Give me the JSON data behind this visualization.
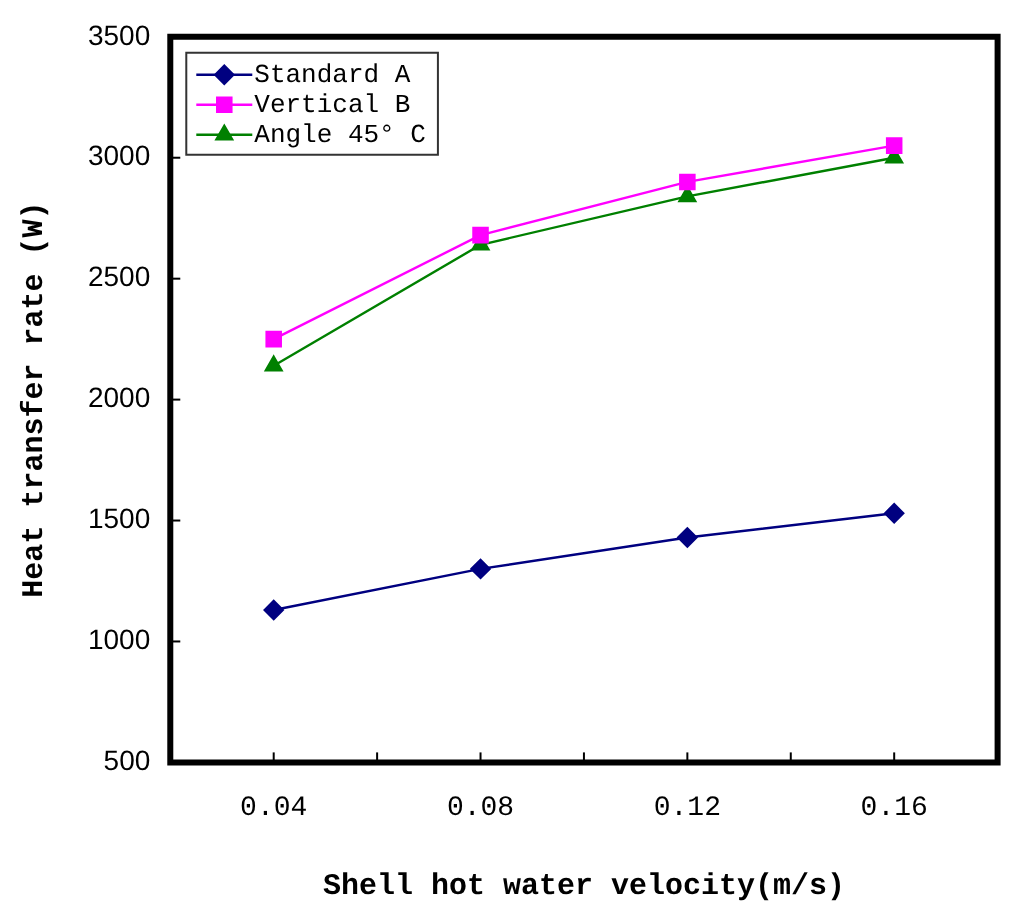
{
  "chart_data": {
    "type": "line",
    "xlabel": "Shell hot water velocity(m/s)",
    "ylabel": "Heat transfer rate (W)",
    "x": [
      0.04,
      0.08,
      0.12,
      0.16
    ],
    "series": [
      {
        "name": "Standard A",
        "color": "#000080",
        "marker": "diamond",
        "values": [
          1130,
          1300,
          1430,
          1530
        ]
      },
      {
        "name": "Vertical B",
        "color": "#ff00ff",
        "marker": "square",
        "values": [
          2250,
          2680,
          2900,
          3050
        ]
      },
      {
        "name": "Angle 45° C",
        "color": "#008000",
        "marker": "triangle",
        "values": [
          2140,
          2640,
          2840,
          3000
        ]
      }
    ],
    "xlim": [
      0.02,
      0.18
    ],
    "xticks": [
      0.04,
      {
        "value": 0.06,
        "label": null
      },
      0.08,
      {
        "value": 0.1,
        "label": null
      },
      0.12,
      {
        "value": 0.14,
        "label": null
      },
      0.16
    ],
    "ylim": [
      500,
      3500
    ],
    "yticks": [
      500,
      1000,
      1500,
      2000,
      2500,
      3000,
      3500
    ],
    "grid": false,
    "legend": "top left",
    "line_style": "solid"
  }
}
